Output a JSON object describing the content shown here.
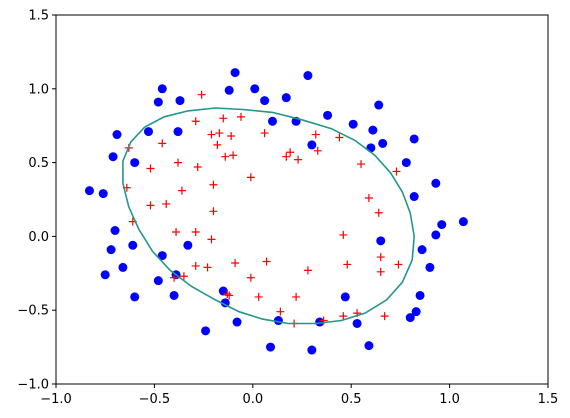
{
  "chart_data": {
    "type": "scatter",
    "title": "",
    "xlabel": "",
    "ylabel": "",
    "xlim": [
      -1.0,
      1.5
    ],
    "ylim": [
      -1.0,
      1.5
    ],
    "grid": false,
    "xticks": [
      -1.0,
      -0.5,
      0.0,
      0.5,
      1.0,
      1.5
    ],
    "yticks": [
      -1.0,
      -0.5,
      0.0,
      0.5,
      1.0,
      1.5
    ],
    "xtick_labels": [
      "−1.0",
      "−0.5",
      "0.0",
      "0.5",
      "1.0",
      "1.5"
    ],
    "ytick_labels": [
      "−1.0",
      "−0.5",
      "0.0",
      "0.5",
      "1.0",
      "1.5"
    ],
    "series": [
      {
        "marker": "circle",
        "color": "#0000ff",
        "points": [
          [
            -0.09,
            1.11
          ],
          [
            -0.12,
            0.99
          ],
          [
            0.01,
            1.0
          ],
          [
            0.06,
            0.92
          ],
          [
            0.28,
            1.09
          ],
          [
            -0.46,
            1.0
          ],
          [
            -0.48,
            0.91
          ],
          [
            -0.37,
            0.92
          ],
          [
            0.17,
            0.94
          ],
          [
            0.38,
            0.82
          ],
          [
            0.51,
            0.76
          ],
          [
            0.64,
            0.89
          ],
          [
            0.1,
            0.78
          ],
          [
            0.22,
            0.78
          ],
          [
            0.61,
            0.72
          ],
          [
            0.66,
            0.63
          ],
          [
            0.82,
            0.66
          ],
          [
            0.6,
            0.6
          ],
          [
            -0.53,
            0.71
          ],
          [
            -0.69,
            0.69
          ],
          [
            -0.71,
            0.54
          ],
          [
            -0.6,
            0.5
          ],
          [
            -0.38,
            0.71
          ],
          [
            0.3,
            0.62
          ],
          [
            0.78,
            0.5
          ],
          [
            0.93,
            0.36
          ],
          [
            0.82,
            0.27
          ],
          [
            -0.83,
            0.31
          ],
          [
            -0.76,
            0.29
          ],
          [
            -0.7,
            0.04
          ],
          [
            -0.72,
            -0.09
          ],
          [
            -0.61,
            -0.06
          ],
          [
            -0.66,
            -0.21
          ],
          [
            -0.75,
            -0.26
          ],
          [
            -0.46,
            -0.13
          ],
          [
            -0.39,
            -0.26
          ],
          [
            -0.33,
            -0.06
          ],
          [
            -0.6,
            -0.41
          ],
          [
            -0.48,
            -0.3
          ],
          [
            -0.4,
            -0.4
          ],
          [
            -0.15,
            -0.37
          ],
          [
            -0.14,
            -0.45
          ],
          [
            -0.24,
            -0.64
          ],
          [
            -0.08,
            -0.58
          ],
          [
            0.09,
            -0.75
          ],
          [
            0.3,
            -0.77
          ],
          [
            0.13,
            -0.57
          ],
          [
            0.34,
            -0.58
          ],
          [
            0.53,
            -0.59
          ],
          [
            0.47,
            -0.41
          ],
          [
            0.59,
            -0.74
          ],
          [
            0.8,
            -0.55
          ],
          [
            0.83,
            -0.51
          ],
          [
            0.85,
            -0.4
          ],
          [
            0.9,
            -0.21
          ],
          [
            0.86,
            -0.09
          ],
          [
            0.93,
            0.01
          ],
          [
            0.96,
            0.08
          ],
          [
            1.07,
            0.1
          ],
          [
            0.65,
            -0.03
          ]
        ]
      },
      {
        "marker": "plus",
        "color": "#ff0000",
        "points": [
          [
            -0.26,
            0.96
          ],
          [
            -0.06,
            0.81
          ],
          [
            -0.15,
            0.8
          ],
          [
            -0.29,
            0.78
          ],
          [
            -0.21,
            0.69
          ],
          [
            -0.17,
            0.7
          ],
          [
            -0.11,
            0.68
          ],
          [
            0.06,
            0.7
          ],
          [
            0.32,
            0.69
          ],
          [
            0.44,
            0.67
          ],
          [
            -0.46,
            0.63
          ],
          [
            -0.18,
            0.62
          ],
          [
            0.19,
            0.57
          ],
          [
            0.17,
            0.54
          ],
          [
            0.23,
            0.52
          ],
          [
            0.33,
            0.58
          ],
          [
            -0.14,
            0.54
          ],
          [
            -0.1,
            0.55
          ],
          [
            -0.28,
            0.47
          ],
          [
            -0.52,
            0.46
          ],
          [
            -0.63,
            0.6
          ],
          [
            -0.38,
            0.5
          ],
          [
            0.55,
            0.49
          ],
          [
            0.73,
            0.44
          ],
          [
            -0.64,
            0.33
          ],
          [
            -0.36,
            0.31
          ],
          [
            -0.2,
            0.35
          ],
          [
            -0.01,
            0.4
          ],
          [
            0.59,
            0.26
          ],
          [
            0.64,
            0.16
          ],
          [
            -0.52,
            0.21
          ],
          [
            -0.44,
            0.22
          ],
          [
            -0.2,
            0.17
          ],
          [
            -0.39,
            0.03
          ],
          [
            -0.29,
            0.03
          ],
          [
            -0.21,
            -0.02
          ],
          [
            0.46,
            0.01
          ],
          [
            0.65,
            -0.14
          ],
          [
            -0.61,
            0.1
          ],
          [
            -0.09,
            -0.18
          ],
          [
            0.07,
            -0.17
          ],
          [
            0.48,
            -0.19
          ],
          [
            0.74,
            -0.19
          ],
          [
            -0.29,
            -0.2
          ],
          [
            -0.23,
            -0.21
          ],
          [
            0.28,
            -0.23
          ],
          [
            -0.4,
            -0.28
          ],
          [
            -0.35,
            -0.27
          ],
          [
            -0.01,
            -0.28
          ],
          [
            0.65,
            -0.24
          ],
          [
            -0.12,
            -0.4
          ],
          [
            0.03,
            -0.41
          ],
          [
            0.22,
            -0.41
          ],
          [
            0.14,
            -0.51
          ],
          [
            0.46,
            -0.54
          ],
          [
            0.53,
            -0.52
          ],
          [
            0.67,
            -0.54
          ],
          [
            0.21,
            -0.59
          ],
          [
            0.36,
            -0.57
          ],
          [
            -0.13,
            -0.39
          ]
        ]
      },
      {
        "type": "line",
        "color": "#23968c",
        "closed": true,
        "points": [
          [
            -0.19,
            0.87
          ],
          [
            -0.05,
            0.86
          ],
          [
            0.1,
            0.84
          ],
          [
            0.25,
            0.79
          ],
          [
            0.4,
            0.73
          ],
          [
            0.52,
            0.65
          ],
          [
            0.62,
            0.55
          ],
          [
            0.7,
            0.43
          ],
          [
            0.76,
            0.3
          ],
          [
            0.8,
            0.16
          ],
          [
            0.82,
            0.0
          ],
          [
            0.81,
            -0.16
          ],
          [
            0.76,
            -0.31
          ],
          [
            0.68,
            -0.43
          ],
          [
            0.57,
            -0.52
          ],
          [
            0.45,
            -0.57
          ],
          [
            0.32,
            -0.59
          ],
          [
            0.18,
            -0.59
          ],
          [
            0.05,
            -0.56
          ],
          [
            -0.07,
            -0.51
          ],
          [
            -0.19,
            -0.43
          ],
          [
            -0.31,
            -0.34
          ],
          [
            -0.42,
            -0.23
          ],
          [
            -0.51,
            -0.1
          ],
          [
            -0.58,
            0.05
          ],
          [
            -0.63,
            0.2
          ],
          [
            -0.66,
            0.36
          ],
          [
            -0.66,
            0.51
          ],
          [
            -0.62,
            0.64
          ],
          [
            -0.55,
            0.74
          ],
          [
            -0.45,
            0.81
          ],
          [
            -0.33,
            0.85
          ]
        ]
      }
    ]
  }
}
